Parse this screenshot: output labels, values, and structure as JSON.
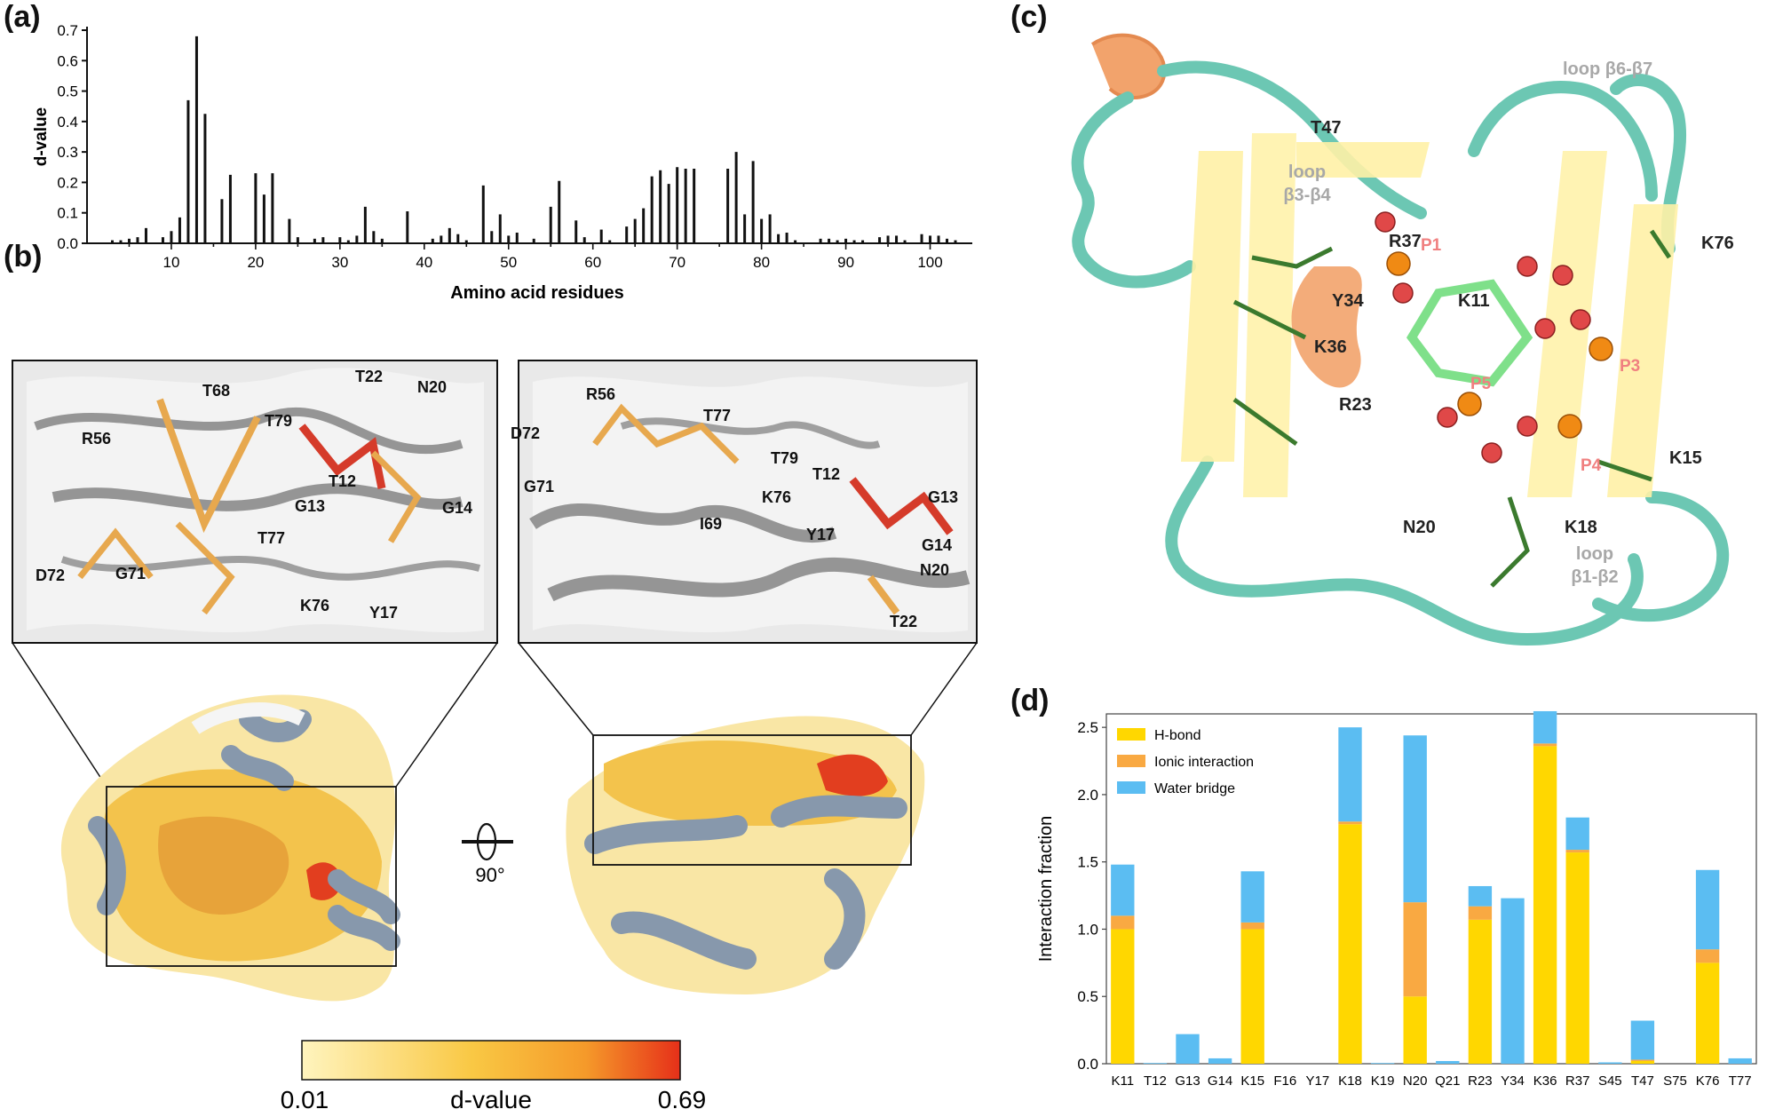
{
  "panels": {
    "a": "(a)",
    "b": "(b)",
    "c": "(c)",
    "d": "(d)"
  },
  "chart_data": [
    {
      "type": "bar",
      "panel": "a",
      "xlabel": "Amino acid residues",
      "ylabel": "d-value",
      "ylim": [
        0,
        0.7
      ],
      "xlim": [
        0,
        105
      ],
      "yticks": [
        "0.0",
        "0.1",
        "0.2",
        "0.3",
        "0.4",
        "0.5",
        "0.6",
        "0.7"
      ],
      "xticks": [
        "10",
        "20",
        "30",
        "40",
        "50",
        "60",
        "70",
        "80",
        "90",
        "100"
      ],
      "x": [
        3,
        4,
        5,
        6,
        7,
        9,
        10,
        11,
        12,
        13,
        14,
        16,
        17,
        20,
        21,
        22,
        24,
        25,
        27,
        28,
        30,
        31,
        32,
        33,
        34,
        35,
        38,
        41,
        42,
        43,
        44,
        45,
        47,
        48,
        49,
        50,
        51,
        53,
        55,
        56,
        58,
        59,
        61,
        62,
        64,
        65,
        66,
        67,
        68,
        69,
        70,
        71,
        72,
        76,
        77,
        78,
        79,
        80,
        81,
        82,
        83,
        84,
        87,
        88,
        89,
        90,
        91,
        92,
        94,
        95,
        96,
        97,
        99,
        100,
        101,
        102,
        103
      ],
      "values": [
        0.01,
        0.01,
        0.015,
        0.02,
        0.05,
        0.02,
        0.04,
        0.085,
        0.47,
        0.68,
        0.425,
        0.145,
        0.225,
        0.23,
        0.16,
        0.23,
        0.08,
        0.02,
        0.015,
        0.02,
        0.02,
        0.01,
        0.025,
        0.12,
        0.04,
        0.015,
        0.105,
        0.015,
        0.025,
        0.05,
        0.03,
        0.01,
        0.19,
        0.04,
        0.095,
        0.025,
        0.035,
        0.015,
        0.12,
        0.205,
        0.075,
        0.02,
        0.045,
        0.01,
        0.055,
        0.08,
        0.115,
        0.22,
        0.24,
        0.195,
        0.25,
        0.245,
        0.245,
        0.245,
        0.3,
        0.095,
        0.27,
        0.08,
        0.095,
        0.03,
        0.035,
        0.01,
        0.015,
        0.015,
        0.01,
        0.015,
        0.01,
        0.01,
        0.02,
        0.025,
        0.025,
        0.01,
        0.03,
        0.025,
        0.025,
        0.015,
        0.01
      ]
    },
    {
      "type": "bar",
      "panel": "d",
      "ylabel": "Interaction fraction",
      "ylim": [
        0,
        2.6
      ],
      "yticks": [
        "0.0",
        "0.5",
        "1.0",
        "1.5",
        "2.0",
        "2.5"
      ],
      "categories": [
        "K11",
        "T12",
        "G13",
        "G14",
        "K15",
        "F16",
        "Y17",
        "K18",
        "K19",
        "N20",
        "Q21",
        "R23",
        "Y34",
        "K36",
        "R37",
        "S45",
        "T47",
        "S75",
        "K76",
        "T77"
      ],
      "series": [
        {
          "name": "H-bond",
          "color": "#FFD700",
          "values": [
            1.0,
            0,
            0,
            0,
            1.0,
            0,
            0,
            1.78,
            0,
            0.5,
            0,
            1.07,
            0,
            2.36,
            1.57,
            0,
            0.02,
            0,
            0.75,
            0
          ]
        },
        {
          "name": "Ionic interaction",
          "color": "#F9A942",
          "values": [
            0.1,
            0,
            0,
            0,
            0.05,
            0,
            0,
            0.02,
            0,
            0.7,
            0,
            0.1,
            0,
            0.02,
            0.02,
            0,
            0.01,
            0,
            0.1,
            0
          ]
        },
        {
          "name": "Water bridge",
          "color": "#5BBDF2",
          "values": [
            0.38,
            0.005,
            0.22,
            0.04,
            0.38,
            0,
            0,
            0.7,
            0.005,
            1.24,
            0.02,
            0.15,
            1.23,
            0.24,
            0.24,
            0.01,
            0.29,
            0,
            0.59,
            0.04
          ]
        }
      ],
      "legend_position": "top-left"
    }
  ],
  "panel_b": {
    "labels_left": [
      "T68",
      "T22",
      "N20",
      "R56",
      "T79",
      "T12",
      "G13",
      "G14",
      "T77",
      "D72",
      "G71",
      "K76",
      "Y17"
    ],
    "labels_right": [
      "R56",
      "T77",
      "D72",
      "T79",
      "T12",
      "G71",
      "K76",
      "G13",
      "I69",
      "Y17",
      "G14",
      "N20",
      "T22"
    ],
    "rotation": "90°",
    "colorbar": {
      "min": "0.01",
      "max": "0.69",
      "label": "d-value"
    }
  },
  "panel_c": {
    "loop_labels": [
      "loop β6-β7",
      "loop β3-β4",
      "loop β1-β2"
    ],
    "loop_b6b7": "loop β6-β7",
    "loop_b3b4": [
      "loop",
      "β3-β4"
    ],
    "loop_b1b2": [
      "loop",
      "β1-β2"
    ],
    "residues": [
      "T47",
      "R37",
      "K76",
      "Y34",
      "K11",
      "K36",
      "R23",
      "K15",
      "N20",
      "K18"
    ],
    "phosphates": [
      "P1",
      "P3",
      "P5",
      "P4"
    ]
  }
}
